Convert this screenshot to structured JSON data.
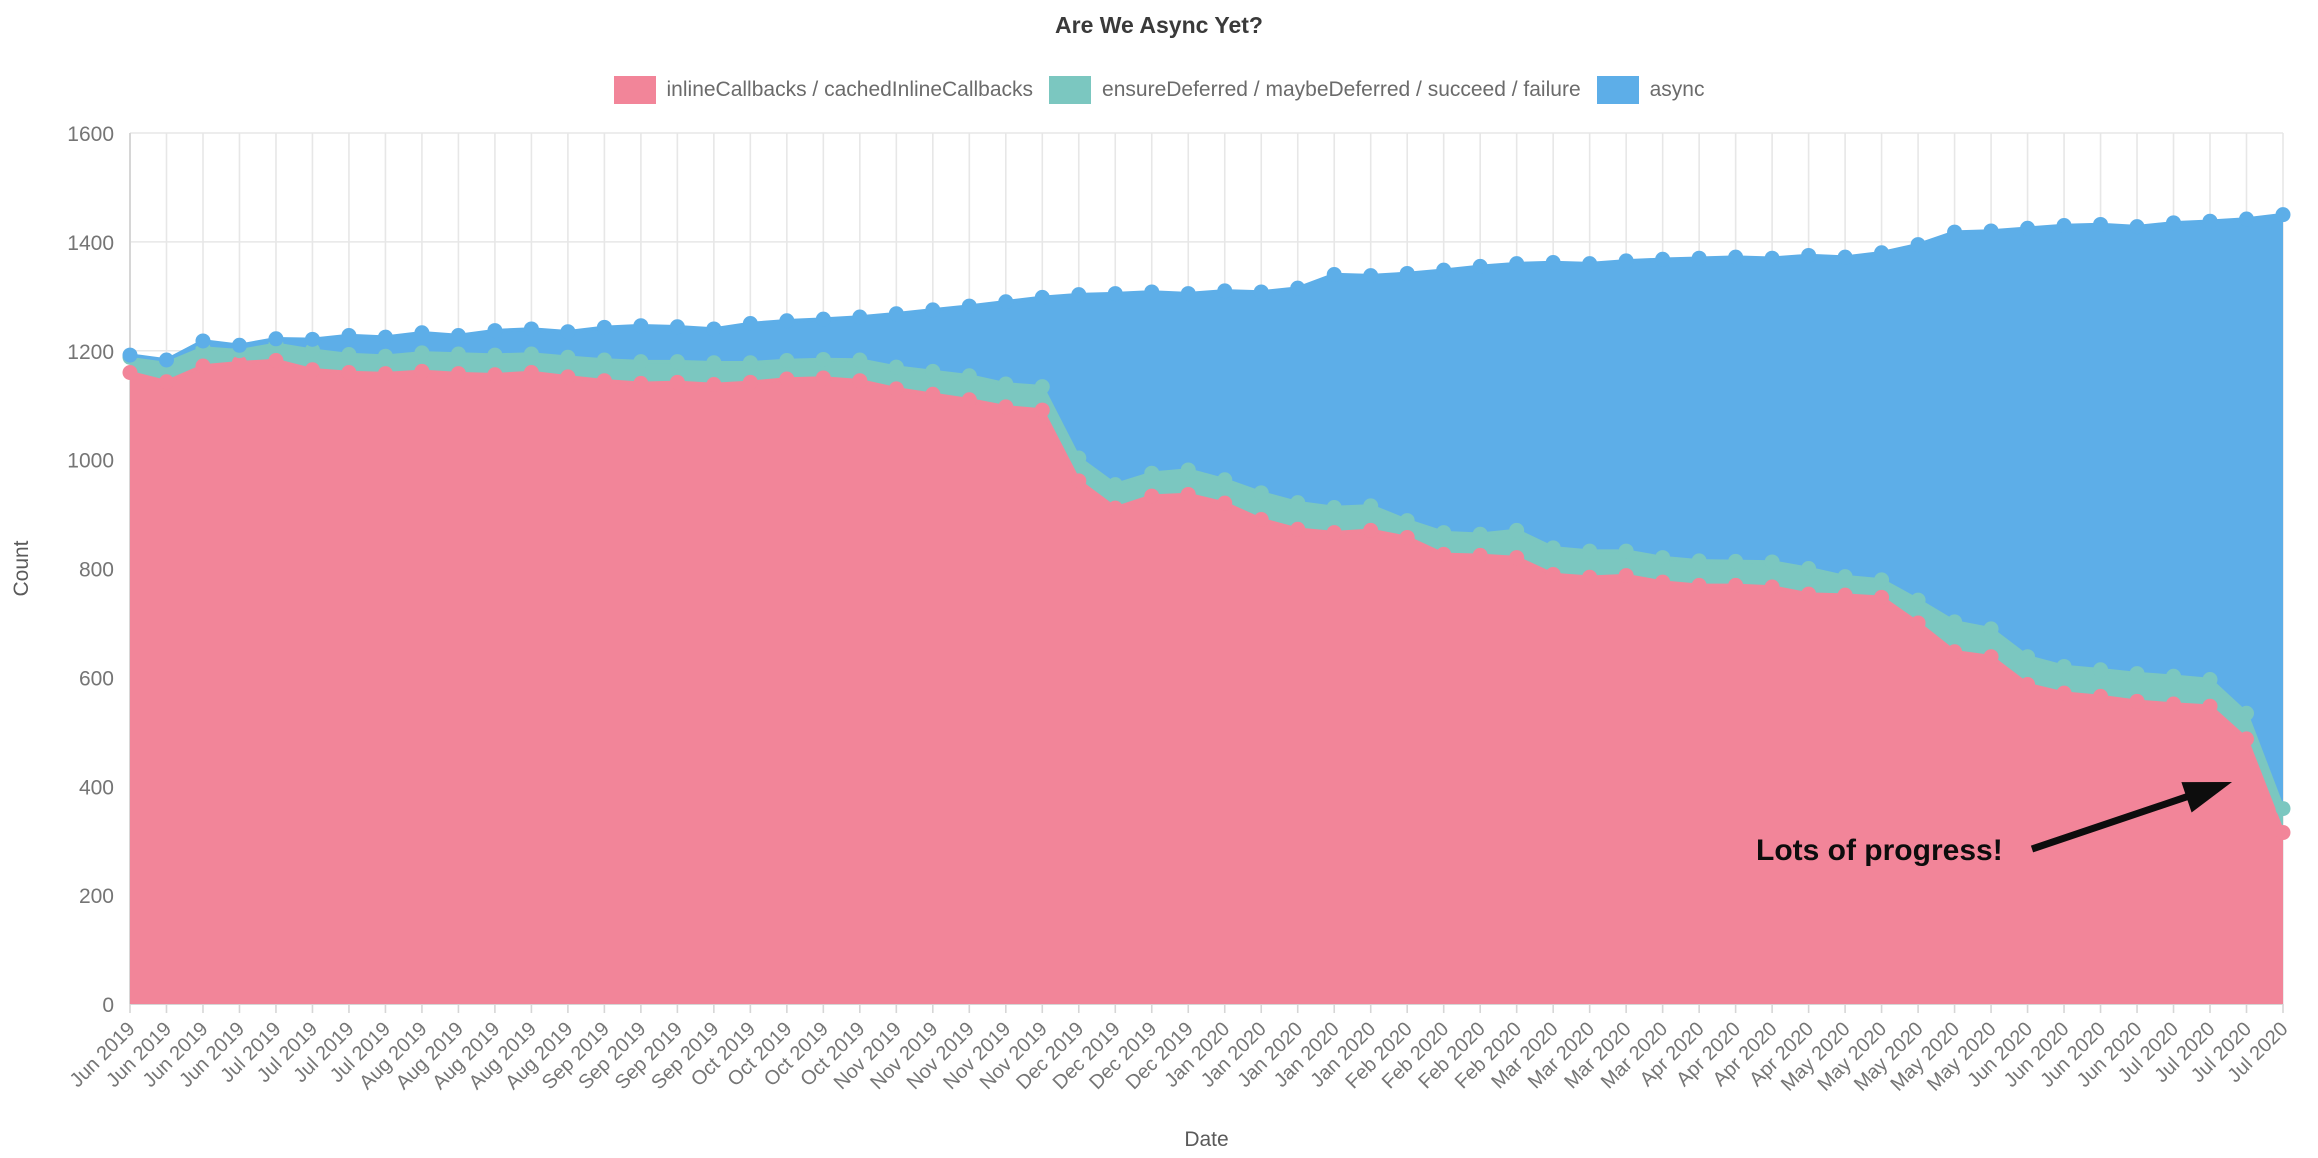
{
  "title": "Are We Async Yet?",
  "legend": [
    {
      "label": "inlineCallbacks / cachedInlineCallbacks",
      "color": "#F28599"
    },
    {
      "label": "ensureDeferred / maybeDeferred / succeed / failure",
      "color": "#7BC7C0"
    },
    {
      "label": "async",
      "color": "#5DAEE8"
    }
  ],
  "annotation": {
    "text": "Lots of progress!"
  },
  "axes": {
    "x_title": "Date",
    "y_title": "Count"
  },
  "colors": {
    "grid": "#e7e7e7",
    "axis": "#d6d6d6",
    "tick_text": "#757575",
    "axis_title_text": "#5a5a5a",
    "annotation": "#0d0d0d"
  },
  "chart_data": {
    "type": "area",
    "stacked": true,
    "title": "Are We Async Yet?",
    "xlabel": "Date",
    "ylabel": "Count",
    "ylim": [
      0,
      1600
    ],
    "yticks": [
      0,
      200,
      400,
      600,
      800,
      1000,
      1200,
      1400,
      1600
    ],
    "grid": true,
    "legend_position": "top",
    "markers": true,
    "categories": [
      "Jun 2019",
      "Jun 2019",
      "Jun 2019",
      "Jun 2019",
      "Jul 2019",
      "Jul 2019",
      "Jul 2019",
      "Jul 2019",
      "Aug 2019",
      "Aug 2019",
      "Aug 2019",
      "Aug 2019",
      "Aug 2019",
      "Sep 2019",
      "Sep 2019",
      "Sep 2019",
      "Sep 2019",
      "Oct 2019",
      "Oct 2019",
      "Oct 2019",
      "Oct 2019",
      "Nov 2019",
      "Nov 2019",
      "Nov 2019",
      "Nov 2019",
      "Nov 2019",
      "Dec 2019",
      "Dec 2019",
      "Dec 2019",
      "Dec 2019",
      "Jan 2020",
      "Jan 2020",
      "Jan 2020",
      "Jan 2020",
      "Jan 2020",
      "Feb 2020",
      "Feb 2020",
      "Feb 2020",
      "Feb 2020",
      "Mar 2020",
      "Mar 2020",
      "Mar 2020",
      "Mar 2020",
      "Apr 2020",
      "Apr 2020",
      "Apr 2020",
      "Apr 2020",
      "May 2020",
      "May 2020",
      "May 2020",
      "May 2020",
      "May 2020",
      "Jun 2020",
      "Jun 2020",
      "Jun 2020",
      "Jun 2020",
      "Jul 2020",
      "Jul 2020",
      "Jul 2020",
      "Jul 2020"
    ],
    "series": [
      {
        "name": "inlineCallbacks / cachedInlineCallbacks",
        "color": "#F28599",
        "values": [
          1160,
          1143,
          1172,
          1178,
          1182,
          1165,
          1160,
          1158,
          1162,
          1158,
          1156,
          1160,
          1152,
          1145,
          1140,
          1142,
          1138,
          1142,
          1148,
          1150,
          1145,
          1130,
          1120,
          1110,
          1097,
          1091,
          961,
          911,
          933,
          936,
          920,
          890,
          872,
          866,
          870,
          857,
          826,
          824,
          820,
          789,
          784,
          787,
          775,
          769,
          769,
          766,
          753,
          751,
          747,
          700,
          647,
          638,
          587,
          571,
          565,
          556,
          551,
          547,
          487,
          315
        ]
      },
      {
        "name": "ensureDeferred / maybeDeferred / succeed / failure",
        "color": "#7BC7C0",
        "values": [
          28,
          34,
          33,
          22,
          30,
          36,
          33,
          32,
          34,
          36,
          36,
          34,
          36,
          38,
          40,
          38,
          40,
          36,
          34,
          34,
          38,
          40,
          42,
          44,
          42,
          43,
          42,
          43,
          42,
          45,
          43,
          49,
          49,
          46,
          45,
          31,
          40,
          39,
          50,
          49,
          48,
          45,
          45,
          45,
          44,
          46,
          47,
          34,
          32,
          42,
          55,
          51,
          51,
          49,
          49,
          51,
          51,
          49,
          47,
          44
        ]
      },
      {
        "name": "async",
        "color": "#5DAEE8",
        "values": [
          4,
          6,
          13,
          10,
          10,
          20,
          35,
          35,
          37,
          34,
          45,
          46,
          47,
          60,
          66,
          64,
          62,
          72,
          73,
          74,
          79,
          98,
          113,
          128,
          151,
          164,
          300,
          351,
          333,
          324,
          347,
          369,
          394,
          428,
          423,
          454,
          482,
          492,
          490,
          524,
          528,
          533,
          548,
          556,
          559,
          558,
          575,
          587,
          601,
          653,
          716,
          731,
          787,
          810,
          818,
          821,
          833,
          842,
          908,
          1091
        ]
      }
    ]
  }
}
